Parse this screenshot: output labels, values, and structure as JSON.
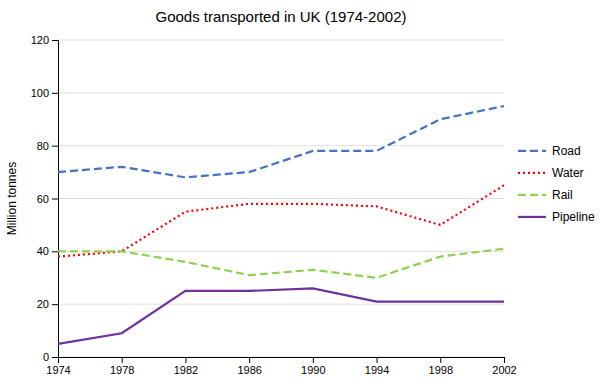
{
  "chart_data": {
    "type": "line",
    "title": "Goods transported in UK (1974-2002)",
    "ylabel": "Million tonnes",
    "x": [
      1974,
      1978,
      1982,
      1986,
      1990,
      1994,
      1998,
      2002
    ],
    "series": [
      {
        "name": "Road",
        "color": "#4472C4",
        "line_style": "dashed",
        "values": [
          70,
          72,
          68,
          70,
          78,
          78,
          90,
          95
        ]
      },
      {
        "name": "Water",
        "color": "#FF0000",
        "line_style": "dotted",
        "values": [
          38,
          40,
          55,
          58,
          58,
          57,
          50,
          65
        ]
      },
      {
        "name": "Rail",
        "color": "#92D050",
        "line_style": "dashed",
        "values": [
          40,
          40,
          36,
          31,
          33,
          30,
          38,
          41
        ]
      },
      {
        "name": "Pipeline",
        "color": "#7030A0",
        "line_style": "solid",
        "values": [
          5,
          9,
          25,
          25,
          26,
          21,
          21,
          21
        ]
      }
    ],
    "xlim": [
      1974,
      2002
    ],
    "xticks": [
      1974,
      1978,
      1982,
      1986,
      1990,
      1994,
      1998,
      2002
    ],
    "ylim": [
      0,
      120
    ],
    "yticks": [
      0,
      20,
      40,
      60,
      80,
      100,
      120
    ],
    "grid": true,
    "legend": "right"
  }
}
